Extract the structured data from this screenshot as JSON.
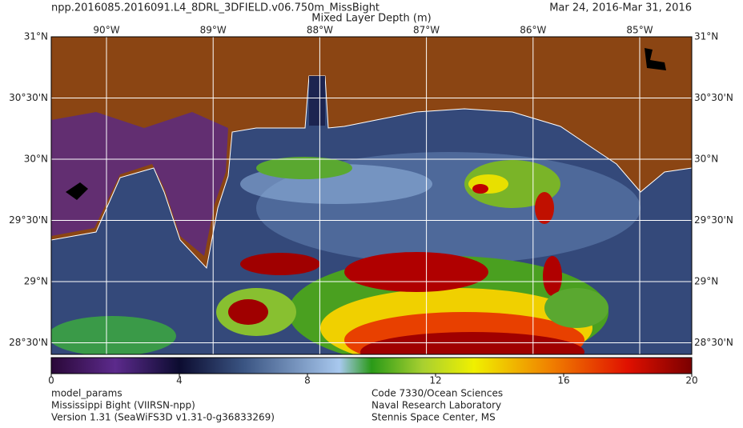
{
  "header": {
    "title": "npp.2016085.2016091.L4_8DRL_3DFIELD.v06.750m_MissBight",
    "date": "Mar 24, 2016-Mar 31, 2016",
    "subtitle": "Mixed Layer Depth (m)"
  },
  "map": {
    "lon_labels": [
      "90°W",
      "89°W",
      "88°W",
      "87°W",
      "86°W",
      "85°W"
    ],
    "lat_labels": [
      "31°N",
      "30°30'N",
      "30°N",
      "29°30'N",
      "29°N",
      "28°30'N"
    ]
  },
  "colorbar": {
    "lim": [
      0,
      20
    ],
    "ticks": [
      0,
      4,
      8,
      12,
      16,
      20
    ]
  },
  "footer": {
    "left": [
      "model_params",
      "Mississippi Bight (VIIRSN-npp)",
      "Version 1.31 (SeaWiFS3D v1.31-0-g36833269)"
    ],
    "right": [
      "Code 7330/Ocean Sciences",
      "Naval Research Laboratory",
      "Stennis Space Center, MS"
    ]
  }
}
